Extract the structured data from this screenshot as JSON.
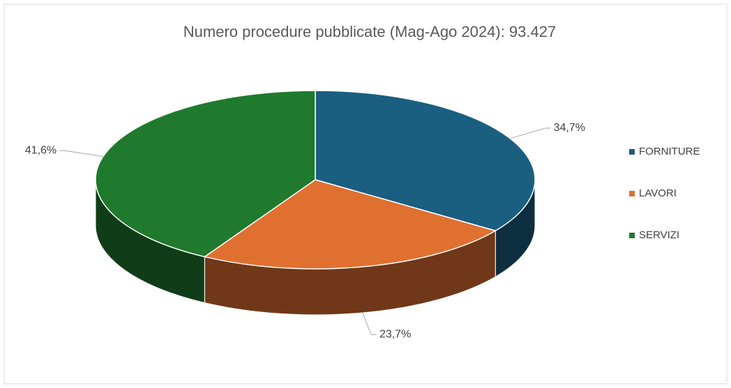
{
  "chart_data": {
    "type": "pie",
    "title": "Numero procedure pubblicate (Mag-Ago 2024): 93.427",
    "categories": [
      "FORNITURE",
      "LAVORI",
      "SERVIZI"
    ],
    "values": [
      34.7,
      23.7,
      41.6
    ],
    "value_labels": [
      "34,7%",
      "23,7%",
      "41,6%"
    ],
    "colors": [
      "#1a5e80",
      "#e07030",
      "#1f7a2e"
    ],
    "legend": "right"
  }
}
